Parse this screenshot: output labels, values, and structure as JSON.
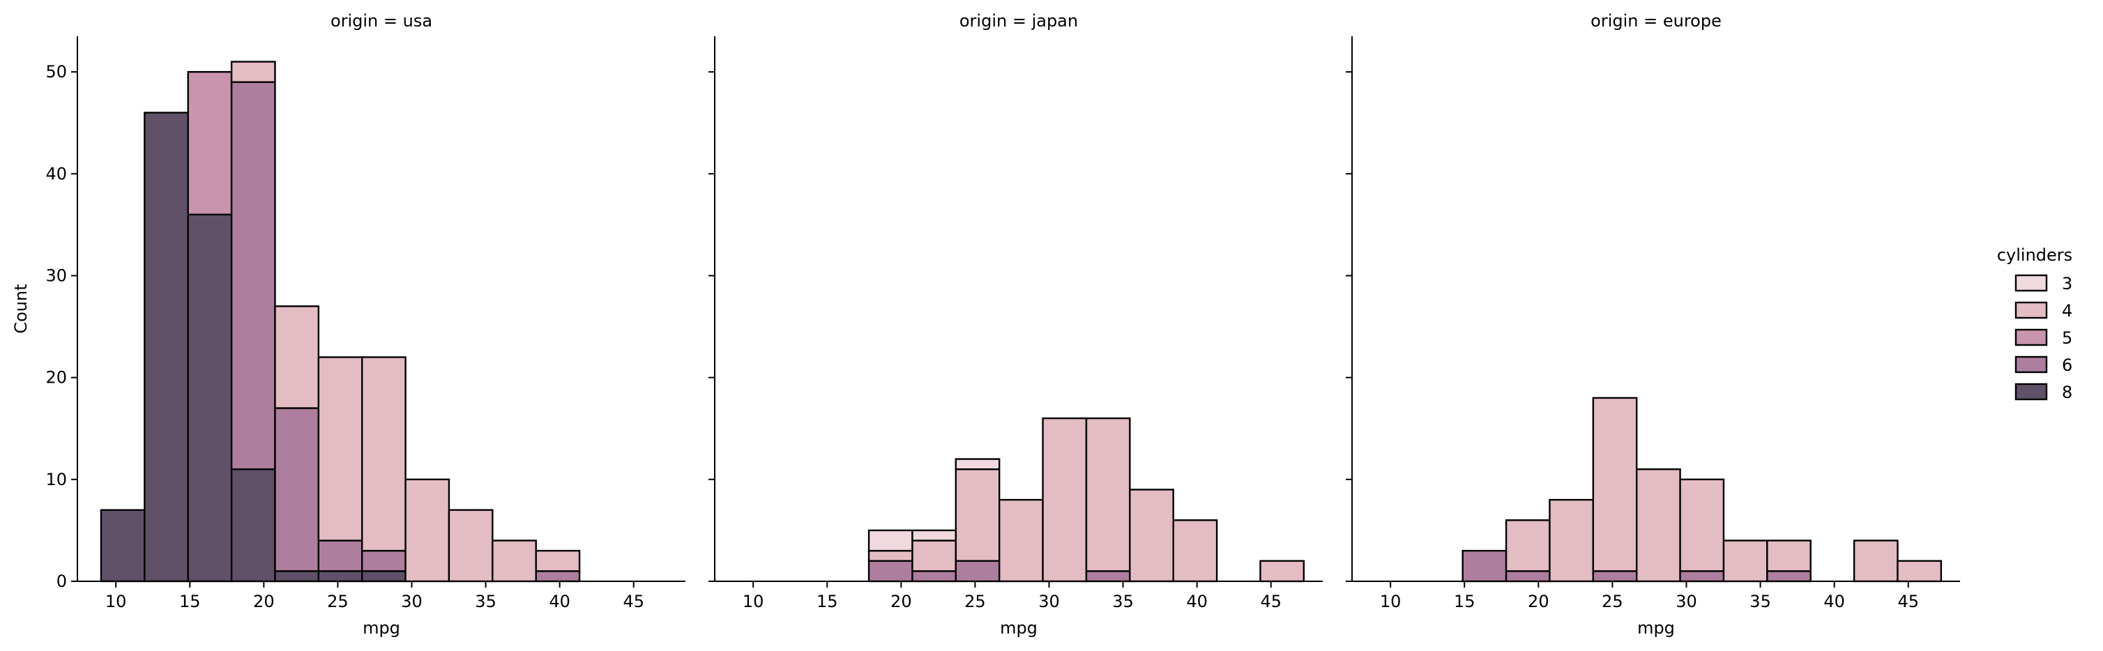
{
  "chart_data": {
    "type": "bar",
    "stacked": true,
    "grid": false,
    "legend_placement": "right",
    "xlabel": "mpg",
    "ylabel": "Count",
    "xlim": [
      7.4,
      48.5
    ],
    "ylim": [
      0,
      53.5
    ],
    "xticks": [
      10,
      15,
      20,
      25,
      30,
      35,
      40,
      45
    ],
    "yticks": [
      0,
      10,
      20,
      30,
      40,
      50
    ],
    "bin_width": 2.94,
    "bin_edges": [
      9.0,
      11.94,
      14.88,
      17.82,
      20.76,
      23.7,
      26.64,
      29.58,
      32.52,
      35.46,
      38.4,
      41.34,
      44.28,
      47.22
    ],
    "hue_title": "cylinders",
    "hue_levels": [
      "3",
      "4",
      "5",
      "6",
      "8"
    ],
    "hue_colors": {
      "3": "#f1dadf",
      "4": "#e4bcc3",
      "5": "#c994ad",
      "6": "#ae7e9e",
      "8": "#605169"
    },
    "facets": [
      {
        "title": "origin = usa",
        "series": [
          {
            "name": "8",
            "values": [
              7,
              46,
              36,
              11,
              1,
              1,
              1,
              0,
              0,
              0,
              0,
              0,
              0
            ]
          },
          {
            "name": "6",
            "values": [
              0,
              0,
              0,
              38,
              16,
              3,
              2,
              0,
              0,
              0,
              1,
              0,
              0
            ]
          },
          {
            "name": "5",
            "values": [
              0,
              0,
              14,
              0,
              0,
              0,
              0,
              0,
              0,
              0,
              0,
              0,
              0
            ]
          },
          {
            "name": "4",
            "values": [
              0,
              0,
              0,
              2,
              10,
              18,
              19,
              10,
              7,
              4,
              2,
              0,
              0
            ]
          },
          {
            "name": "3",
            "values": [
              0,
              0,
              0,
              0,
              0,
              0,
              0,
              0,
              0,
              0,
              0,
              0,
              0
            ]
          }
        ]
      },
      {
        "title": "origin = japan",
        "series": [
          {
            "name": "8",
            "values": [
              0,
              0,
              0,
              0,
              0,
              0,
              0,
              0,
              0,
              0,
              0,
              0,
              0
            ]
          },
          {
            "name": "6",
            "values": [
              0,
              0,
              0,
              2,
              1,
              2,
              0,
              0,
              1,
              0,
              0,
              0,
              0
            ]
          },
          {
            "name": "5",
            "values": [
              0,
              0,
              0,
              0,
              0,
              0,
              0,
              0,
              0,
              0,
              0,
              0,
              0
            ]
          },
          {
            "name": "4",
            "values": [
              0,
              0,
              0,
              1,
              3,
              9,
              8,
              16,
              15,
              9,
              6,
              0,
              2
            ]
          },
          {
            "name": "3",
            "values": [
              0,
              0,
              0,
              2,
              1,
              1,
              0,
              0,
              0,
              0,
              0,
              0,
              0
            ]
          }
        ]
      },
      {
        "title": "origin = europe",
        "series": [
          {
            "name": "8",
            "values": [
              0,
              0,
              0,
              0,
              0,
              0,
              0,
              0,
              0,
              0,
              0,
              0,
              0
            ]
          },
          {
            "name": "6",
            "values": [
              0,
              0,
              3,
              1,
              0,
              1,
              0,
              1,
              0,
              1,
              0,
              0,
              0
            ]
          },
          {
            "name": "5",
            "values": [
              0,
              0,
              0,
              0,
              0,
              0,
              0,
              0,
              0,
              0,
              0,
              0,
              0
            ]
          },
          {
            "name": "4",
            "values": [
              0,
              0,
              0,
              5,
              8,
              17,
              11,
              9,
              4,
              3,
              0,
              4,
              2
            ]
          },
          {
            "name": "3",
            "values": [
              0,
              0,
              0,
              0,
              0,
              0,
              0,
              0,
              0,
              0,
              0,
              0,
              0
            ]
          }
        ]
      }
    ]
  }
}
